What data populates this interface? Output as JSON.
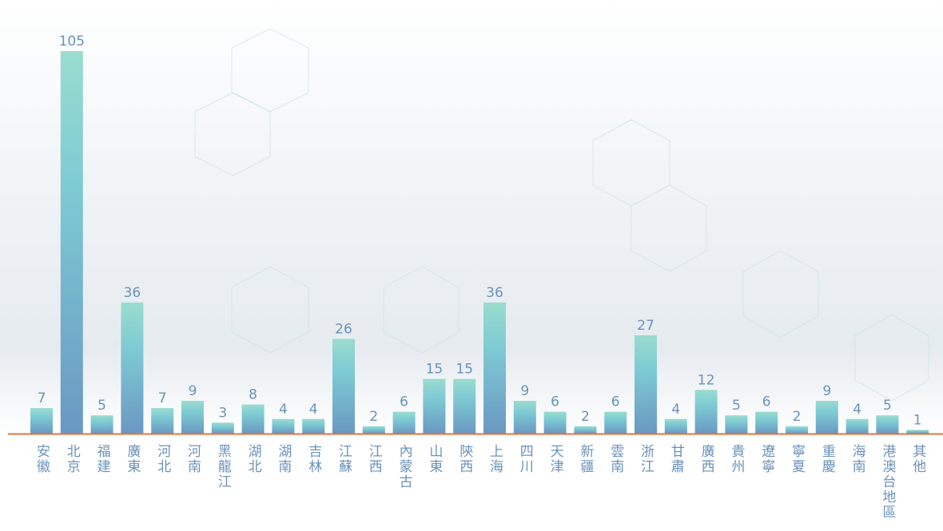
{
  "chart_data": {
    "type": "bar",
    "categories": [
      "安徽",
      "北京",
      "福建",
      "廣東",
      "河北",
      "河南",
      "黑龍江",
      "湖北",
      "湖南",
      "吉林",
      "江蘇",
      "江西",
      "內蒙古",
      "山東",
      "陝西",
      "上海",
      "四川",
      "天津",
      "新疆",
      "雲南",
      "浙江",
      "甘肅",
      "廣西",
      "貴州",
      "遼寧",
      "寧夏",
      "重慶",
      "海南",
      "港澳台地區",
      "其他"
    ],
    "values": [
      7,
      105,
      5,
      36,
      7,
      9,
      3,
      8,
      4,
      4,
      26,
      2,
      6,
      15,
      15,
      36,
      9,
      6,
      2,
      6,
      27,
      4,
      12,
      5,
      6,
      2,
      9,
      4,
      5,
      1
    ],
    "color": "#7fb8cf"
  }
}
